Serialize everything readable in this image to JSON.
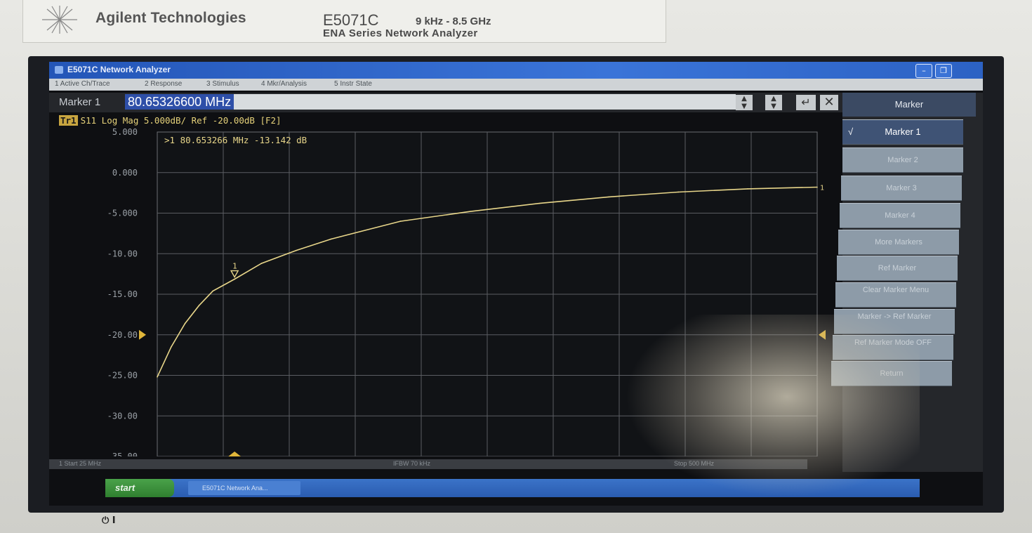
{
  "instrument": {
    "brand": "Agilent Technologies",
    "model": "E5071C",
    "range": "9 kHz - 8.5 GHz",
    "series": "ENA Series  Network Analyzer"
  },
  "window": {
    "title": "E5071C Network Analyzer",
    "menu": [
      "1 Active Ch/Trace",
      "2 Response",
      "3 Stimulus",
      "4 Mkr/Analysis",
      "5 Instr State"
    ]
  },
  "entry": {
    "label": "Marker 1",
    "value": "80.65326600 MHz"
  },
  "trace": {
    "tag": "Tr1",
    "header": "S11 Log Mag 5.000dB/ Ref -20.00dB [F2]",
    "marker_readout": ">1  80.653266 MHz -13.142 dB",
    "marker_label": "1"
  },
  "status": {
    "start": "1  Start 25 MHz",
    "ifbw": "IFBW 70 kHz",
    "stop": "Stop 500 MHz"
  },
  "softkeys": {
    "title": "Marker",
    "items": [
      {
        "label": "Marker 1",
        "active": true,
        "check": "√"
      },
      {
        "label": "Marker 2"
      },
      {
        "label": "Marker 3"
      },
      {
        "label": "Marker 4"
      },
      {
        "label": "More Markers"
      },
      {
        "label": "Ref Marker"
      },
      {
        "label": "Clear Marker Menu"
      },
      {
        "label": "Marker -> Ref Marker"
      },
      {
        "label": "Ref Marker Mode OFF"
      },
      {
        "label": "Return"
      }
    ]
  },
  "taskbar": {
    "start": "start",
    "items": [
      "E5071C Network Ana..."
    ]
  },
  "colors": {
    "trace": "#e8d68a",
    "grid": "#5a5d62",
    "axis_text": "#9aa0a6",
    "softkey_active": "#3f5375",
    "title_bar": "#2c62c4"
  },
  "chart_data": {
    "type": "line",
    "title": "S11 Log Mag 5.000dB/ Ref -20.00dB [F2]",
    "xlabel": "",
    "ylabel": "",
    "y_ticks": [
      "5.000",
      "0.000",
      "-5.000",
      "-10.00",
      "-15.00",
      "-20.00",
      "-25.00",
      "-30.00",
      "-35.00"
    ],
    "ylim": [
      -35,
      5
    ],
    "xlim": [
      25,
      500
    ],
    "x_unit": "MHz",
    "ref_level": -20,
    "grid": true,
    "series": [
      {
        "x": [
          25,
          35,
          45,
          55,
          65,
          80.65,
          100,
          125,
          150,
          200,
          250,
          300,
          350,
          400,
          450,
          500
        ],
        "values": [
          -25.2,
          -21.5,
          -18.6,
          -16.4,
          -14.6,
          -13.142,
          -11.2,
          -9.6,
          -8.2,
          -6.0,
          -4.8,
          -3.8,
          -3.0,
          -2.4,
          -2.0,
          -1.8
        ]
      }
    ],
    "marker": {
      "x": 80.653266,
      "y": -13.142,
      "label": "1"
    }
  }
}
